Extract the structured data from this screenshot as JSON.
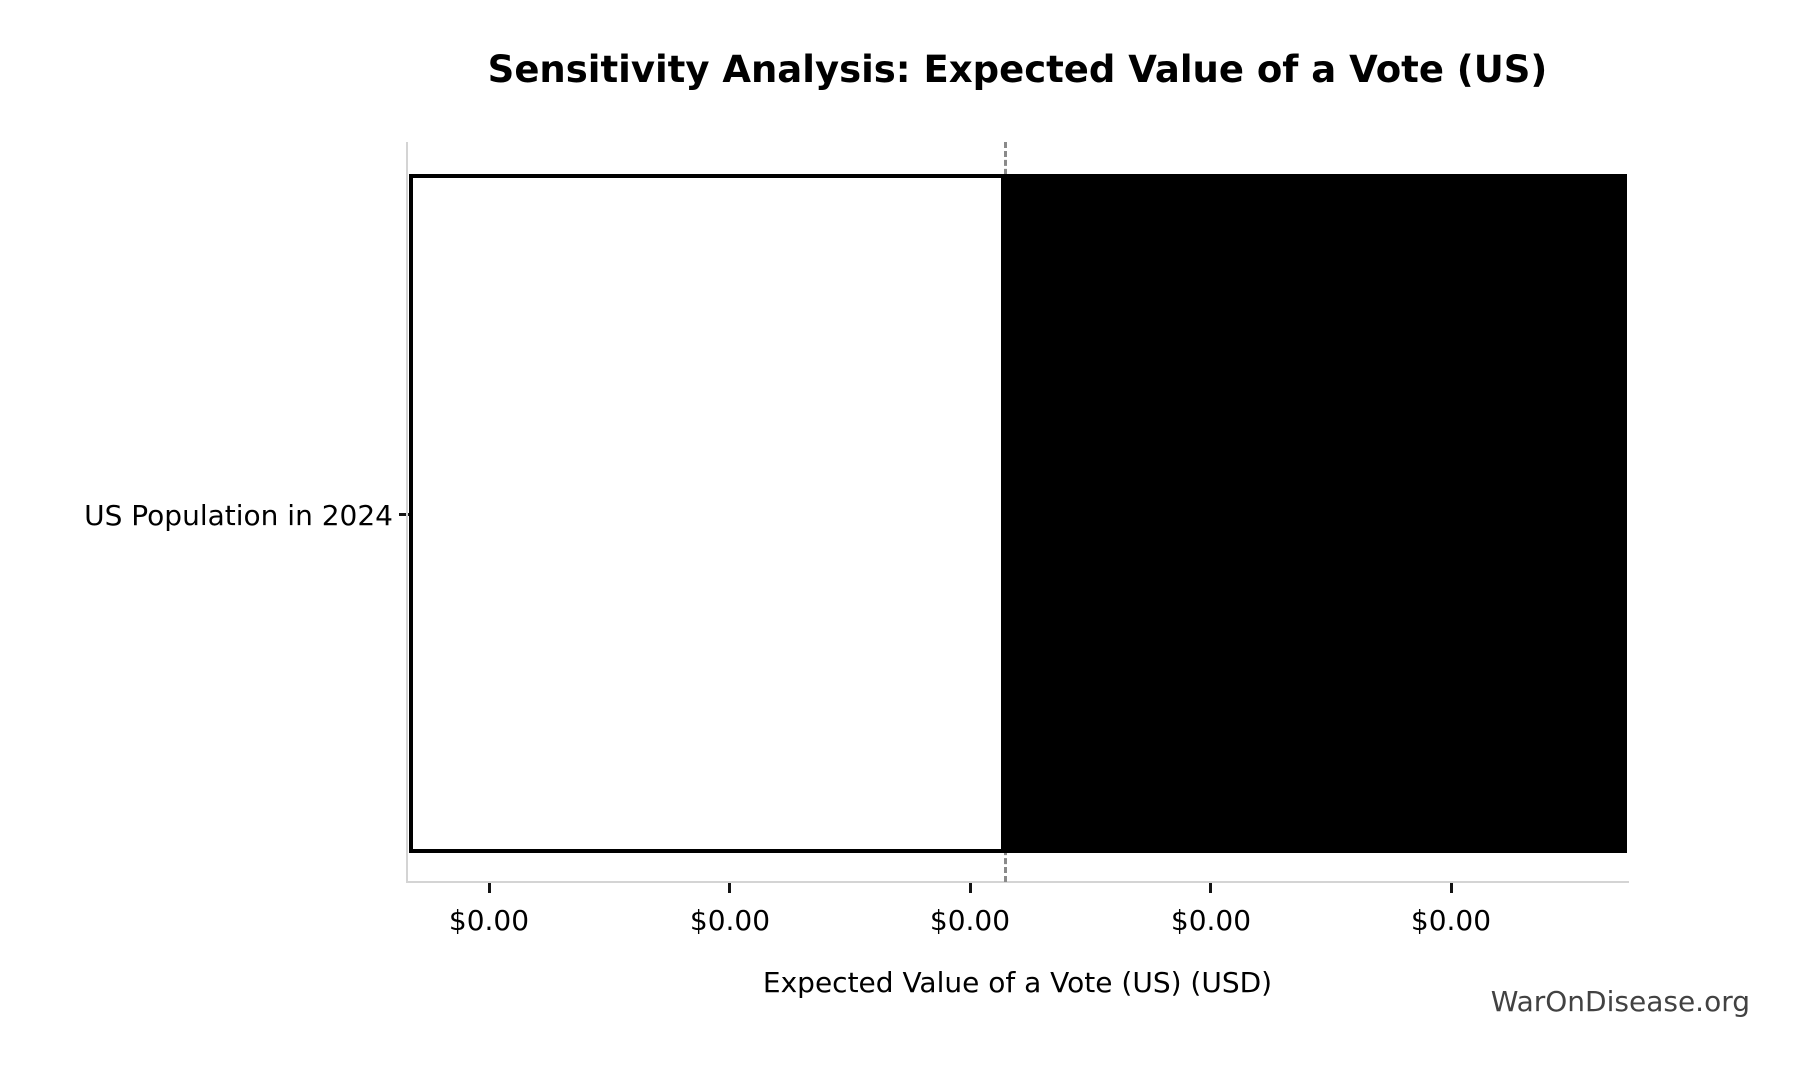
{
  "figure": {
    "background": "#ffffff",
    "watermark": "WarOnDisease.org",
    "watermark_color": "#424242"
  },
  "chart_data": {
    "type": "bar",
    "orientation": "horizontal",
    "title": "Sensitivity Analysis: Expected Value of a Vote (US)",
    "xlabel": "Expected Value of a Vote (US) (USD)",
    "ylabel": "",
    "categories": [
      "US Population in 2024"
    ],
    "x_tick_labels": [
      "$0.00",
      "$0.00",
      "$0.00",
      "$0.00",
      "$0.00"
    ],
    "series": [
      {
        "name": "low-side-segment",
        "fill": "#ffffff",
        "edge": "#000000",
        "span_fraction": [
          0.0,
          0.489
        ]
      },
      {
        "name": "high-side-segment",
        "fill": "#000000",
        "edge": "#000000",
        "span_fraction": [
          0.489,
          1.0
        ]
      }
    ],
    "baseline": {
      "style": "dashed",
      "color": "#8a8a8a",
      "position_fraction": 0.49
    },
    "grid": false,
    "legend": false,
    "spine_color": "#d4d4d4",
    "tick_color": "#141414"
  }
}
